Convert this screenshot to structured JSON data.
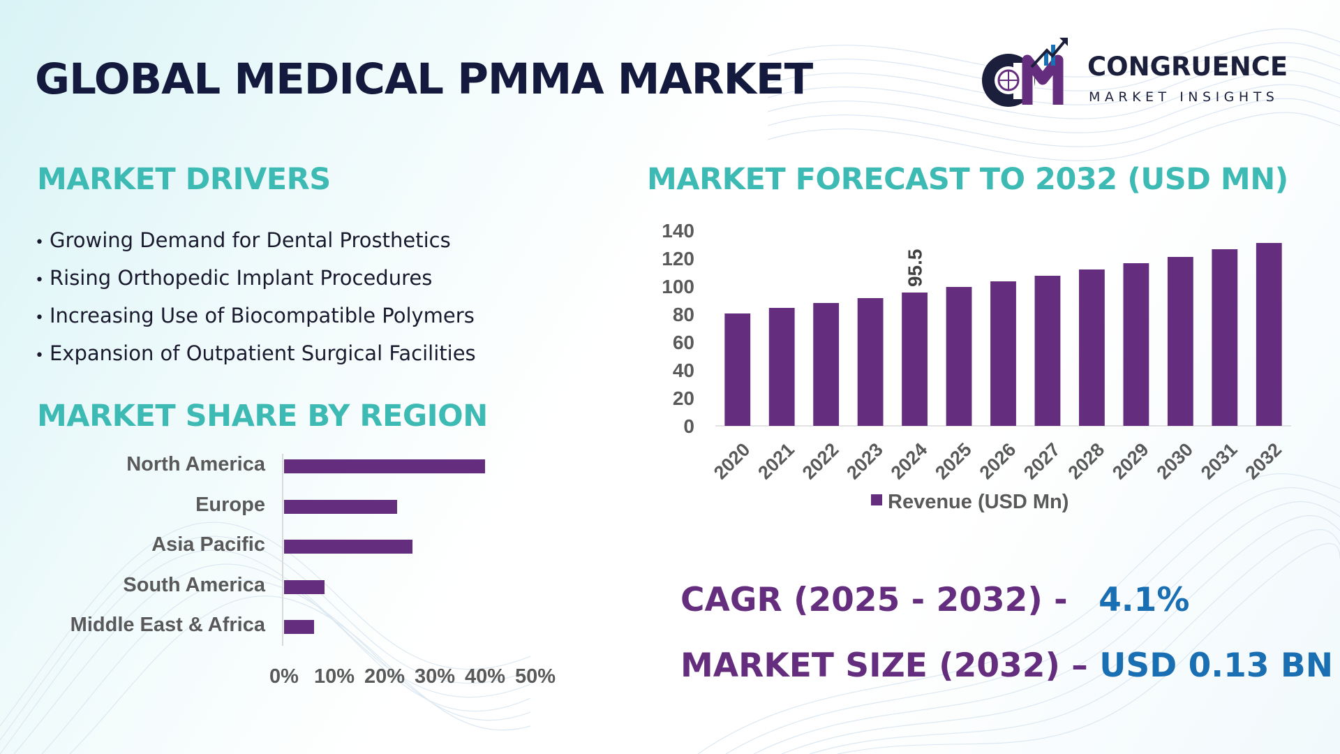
{
  "header": {
    "title": "GLOBAL MEDICAL PMMA MARKET",
    "logo_name": "CONGRUENCE",
    "logo_tagline": "MARKET INSIGHTS"
  },
  "drivers": {
    "title": "MARKET DRIVERS",
    "items": [
      "Growing Demand for Dental Prosthetics",
      "Rising Orthopedic Implant Procedures",
      "Increasing Use of Biocompatible Polymers",
      "Expansion of Outpatient Surgical Facilities"
    ]
  },
  "colors": {
    "bar": "#652d7e",
    "section_title": "#3dbab3",
    "footer_label": "#652d7e",
    "footer_value": "#1a6fb3"
  },
  "chart_data": [
    {
      "type": "bar",
      "orientation": "vertical",
      "title": "MARKET FORECAST TO 2032 (USD MN)",
      "categories": [
        "2020",
        "2021",
        "2022",
        "2023",
        "2024",
        "2025",
        "2026",
        "2027",
        "2028",
        "2029",
        "2030",
        "2031",
        "2032"
      ],
      "series": [
        {
          "name": "Revenue (USD Mn)",
          "values": [
            80.5,
            84.5,
            88,
            91.5,
            95.5,
            99.5,
            103.5,
            107.5,
            112,
            116.5,
            121,
            126.5,
            131
          ]
        }
      ],
      "data_labels": [
        {
          "category": "2024",
          "text": "95.5"
        }
      ],
      "ylim": [
        0,
        140
      ],
      "yticks": [
        "0",
        "20",
        "40",
        "60",
        "80",
        "100",
        "120",
        "140"
      ],
      "legend": "bottom",
      "grid": false
    },
    {
      "type": "bar",
      "orientation": "horizontal",
      "title": "MARKET SHARE BY REGION",
      "categories": [
        "North America",
        "Europe",
        "Asia Pacific",
        "South America",
        "Middle East & Africa"
      ],
      "values": [
        40,
        22.5,
        25.5,
        8,
        6
      ],
      "unit": "%",
      "xlim": [
        0,
        50
      ],
      "xticks": [
        "0%",
        "10%",
        "20%",
        "30%",
        "40%",
        "50%"
      ],
      "grid": false
    }
  ],
  "footer": {
    "cagr_label": "CAGR (2025 - 2032) -",
    "cagr_value": "4.1%",
    "size_label": "MARKET SIZE (2032) –",
    "size_value": "USD 0.13 BN"
  }
}
